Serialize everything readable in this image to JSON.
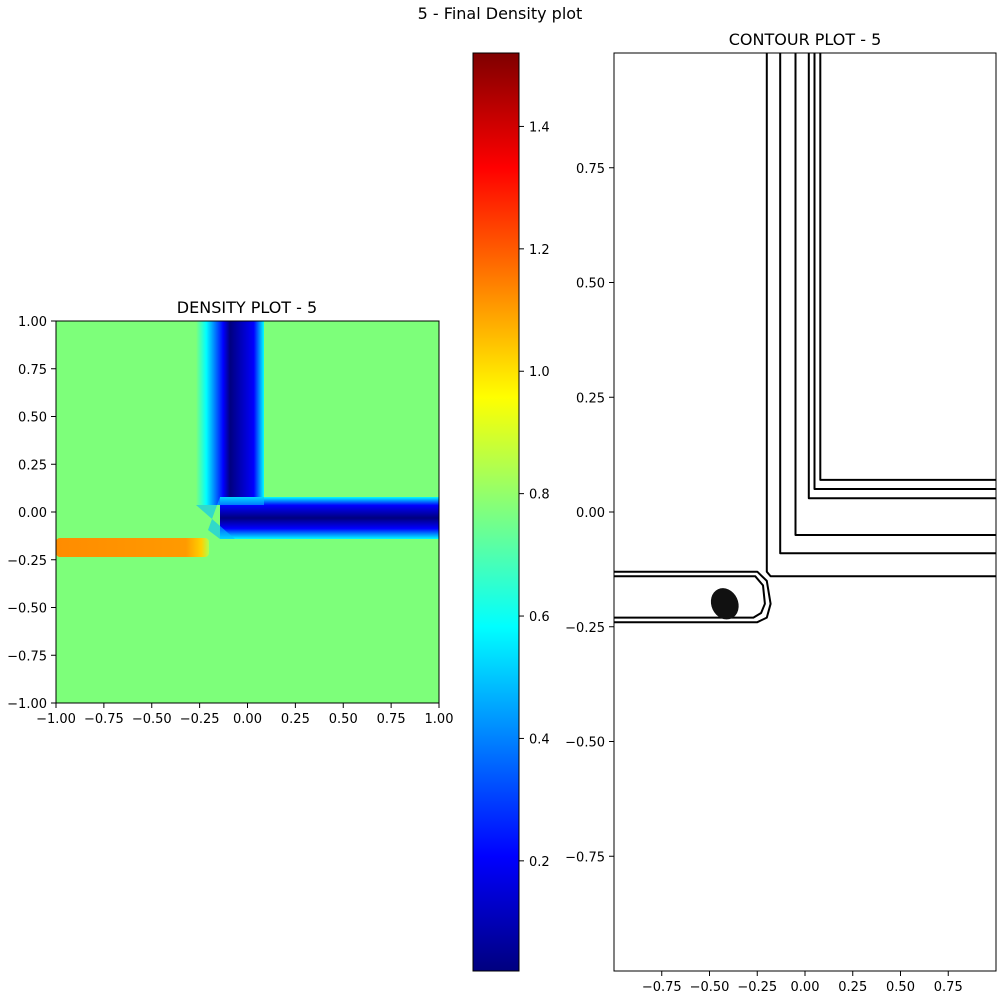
{
  "figure": {
    "suptitle": "5 - Final Density plot"
  },
  "colors": {
    "density_background": "#7dff7a",
    "jet_stops": [
      "#00007f",
      "#0000ff",
      "#007fff",
      "#00ffff",
      "#7fff7f",
      "#ffff00",
      "#ff7f00",
      "#ff0000",
      "#7f0000"
    ]
  },
  "chart_data": [
    {
      "type": "heatmap",
      "title": "DENSITY PLOT - 5",
      "xlabel": "",
      "ylabel": "",
      "xlim": [
        -1.0,
        1.0
      ],
      "ylim": [
        -1.0,
        1.0
      ],
      "xticks": [
        -1.0,
        -0.75,
        -0.5,
        -0.25,
        0.0,
        0.25,
        0.5,
        0.75,
        1.0
      ],
      "xtick_labels": [
        "−1.00",
        "−0.75",
        "−0.50",
        "−0.25",
        "0.00",
        "0.25",
        "0.50",
        "0.75",
        "1.00"
      ],
      "yticks": [
        1.0,
        0.75,
        0.5,
        0.25,
        0.0,
        -0.25,
        -0.5,
        -0.75,
        -1.0
      ],
      "ytick_labels": [
        "1.00",
        "0.75",
        "0.50",
        "0.25",
        "0.00",
        "−0.25",
        "−0.50",
        "−0.75",
        "−1.00"
      ],
      "colormap": "jet",
      "background_value": 0.78,
      "regions": [
        {
          "name": "vertical-low-band",
          "x": [
            -0.07,
            0.05
          ],
          "y": [
            0.05,
            1.0
          ],
          "value": 0.05
        },
        {
          "name": "horizontal-low-band",
          "x": [
            0.05,
            1.0
          ],
          "y": [
            -0.07,
            0.05
          ],
          "value": 0.05
        },
        {
          "name": "high-density-jet",
          "x": [
            -1.0,
            -0.25
          ],
          "y": [
            -0.23,
            -0.15
          ],
          "value": 1.15
        }
      ]
    },
    {
      "type": "colorbar",
      "range": [
        0.02,
        1.52
      ],
      "ticks": [
        0.2,
        0.4,
        0.6,
        0.8,
        1.0,
        1.2,
        1.4
      ],
      "tick_labels": [
        "0.2",
        "0.4",
        "0.6",
        "0.8",
        "1.0",
        "1.2",
        "1.4"
      ]
    },
    {
      "type": "line",
      "title": "CONTOUR PLOT - 5",
      "xlabel": "",
      "ylabel": "",
      "xlim": [
        -1.0,
        1.0
      ],
      "ylim": [
        -1.0,
        1.0
      ],
      "xticks": [
        -0.75,
        -0.5,
        -0.25,
        0.0,
        0.25,
        0.5,
        0.75
      ],
      "xtick_labels": [
        "−0.75",
        "−0.50",
        "−0.25",
        "0.00",
        "0.25",
        "0.50",
        "0.75"
      ],
      "yticks": [
        0.75,
        0.5,
        0.25,
        0.0,
        -0.25,
        -0.5,
        -0.75
      ],
      "ytick_labels": [
        "0.75",
        "0.50",
        "0.25",
        "0.00",
        "−0.25",
        "−0.50",
        "−0.75"
      ],
      "series": [
        {
          "points": [
            [
              -0.2,
              1.0
            ],
            [
              -0.2,
              -0.13
            ],
            [
              -0.18,
              -0.14
            ],
            [
              1.0,
              -0.14
            ]
          ]
        },
        {
          "points": [
            [
              -0.13,
              1.0
            ],
            [
              -0.13,
              -0.09
            ],
            [
              1.0,
              -0.09
            ]
          ]
        },
        {
          "points": [
            [
              -0.05,
              1.0
            ],
            [
              -0.05,
              -0.05
            ],
            [
              1.0,
              -0.05
            ]
          ]
        },
        {
          "points": [
            [
              0.02,
              1.0
            ],
            [
              0.02,
              0.03
            ],
            [
              1.0,
              0.03
            ]
          ]
        },
        {
          "points": [
            [
              0.05,
              1.0
            ],
            [
              0.05,
              0.05
            ],
            [
              1.0,
              0.05
            ]
          ]
        },
        {
          "points": [
            [
              0.08,
              1.0
            ],
            [
              0.08,
              0.07
            ],
            [
              1.0,
              0.07
            ]
          ]
        },
        {
          "points": [
            [
              -1.0,
              -0.13
            ],
            [
              -0.25,
              -0.13
            ],
            [
              -0.2,
              -0.15
            ],
            [
              -0.18,
              -0.2
            ],
            [
              -0.2,
              -0.23
            ],
            [
              -0.25,
              -0.24
            ],
            [
              -1.0,
              -0.24
            ]
          ]
        },
        {
          "points": [
            [
              -1.0,
              -0.14
            ],
            [
              -0.26,
              -0.14
            ],
            [
              -0.22,
              -0.16
            ],
            [
              -0.21,
              -0.2
            ],
            [
              -0.23,
              -0.22
            ],
            [
              -0.27,
              -0.23
            ],
            [
              -1.0,
              -0.23
            ]
          ]
        }
      ],
      "blob": {
        "center": [
          -0.42,
          -0.2
        ],
        "rx": 0.07,
        "ry": 0.035
      }
    }
  ]
}
